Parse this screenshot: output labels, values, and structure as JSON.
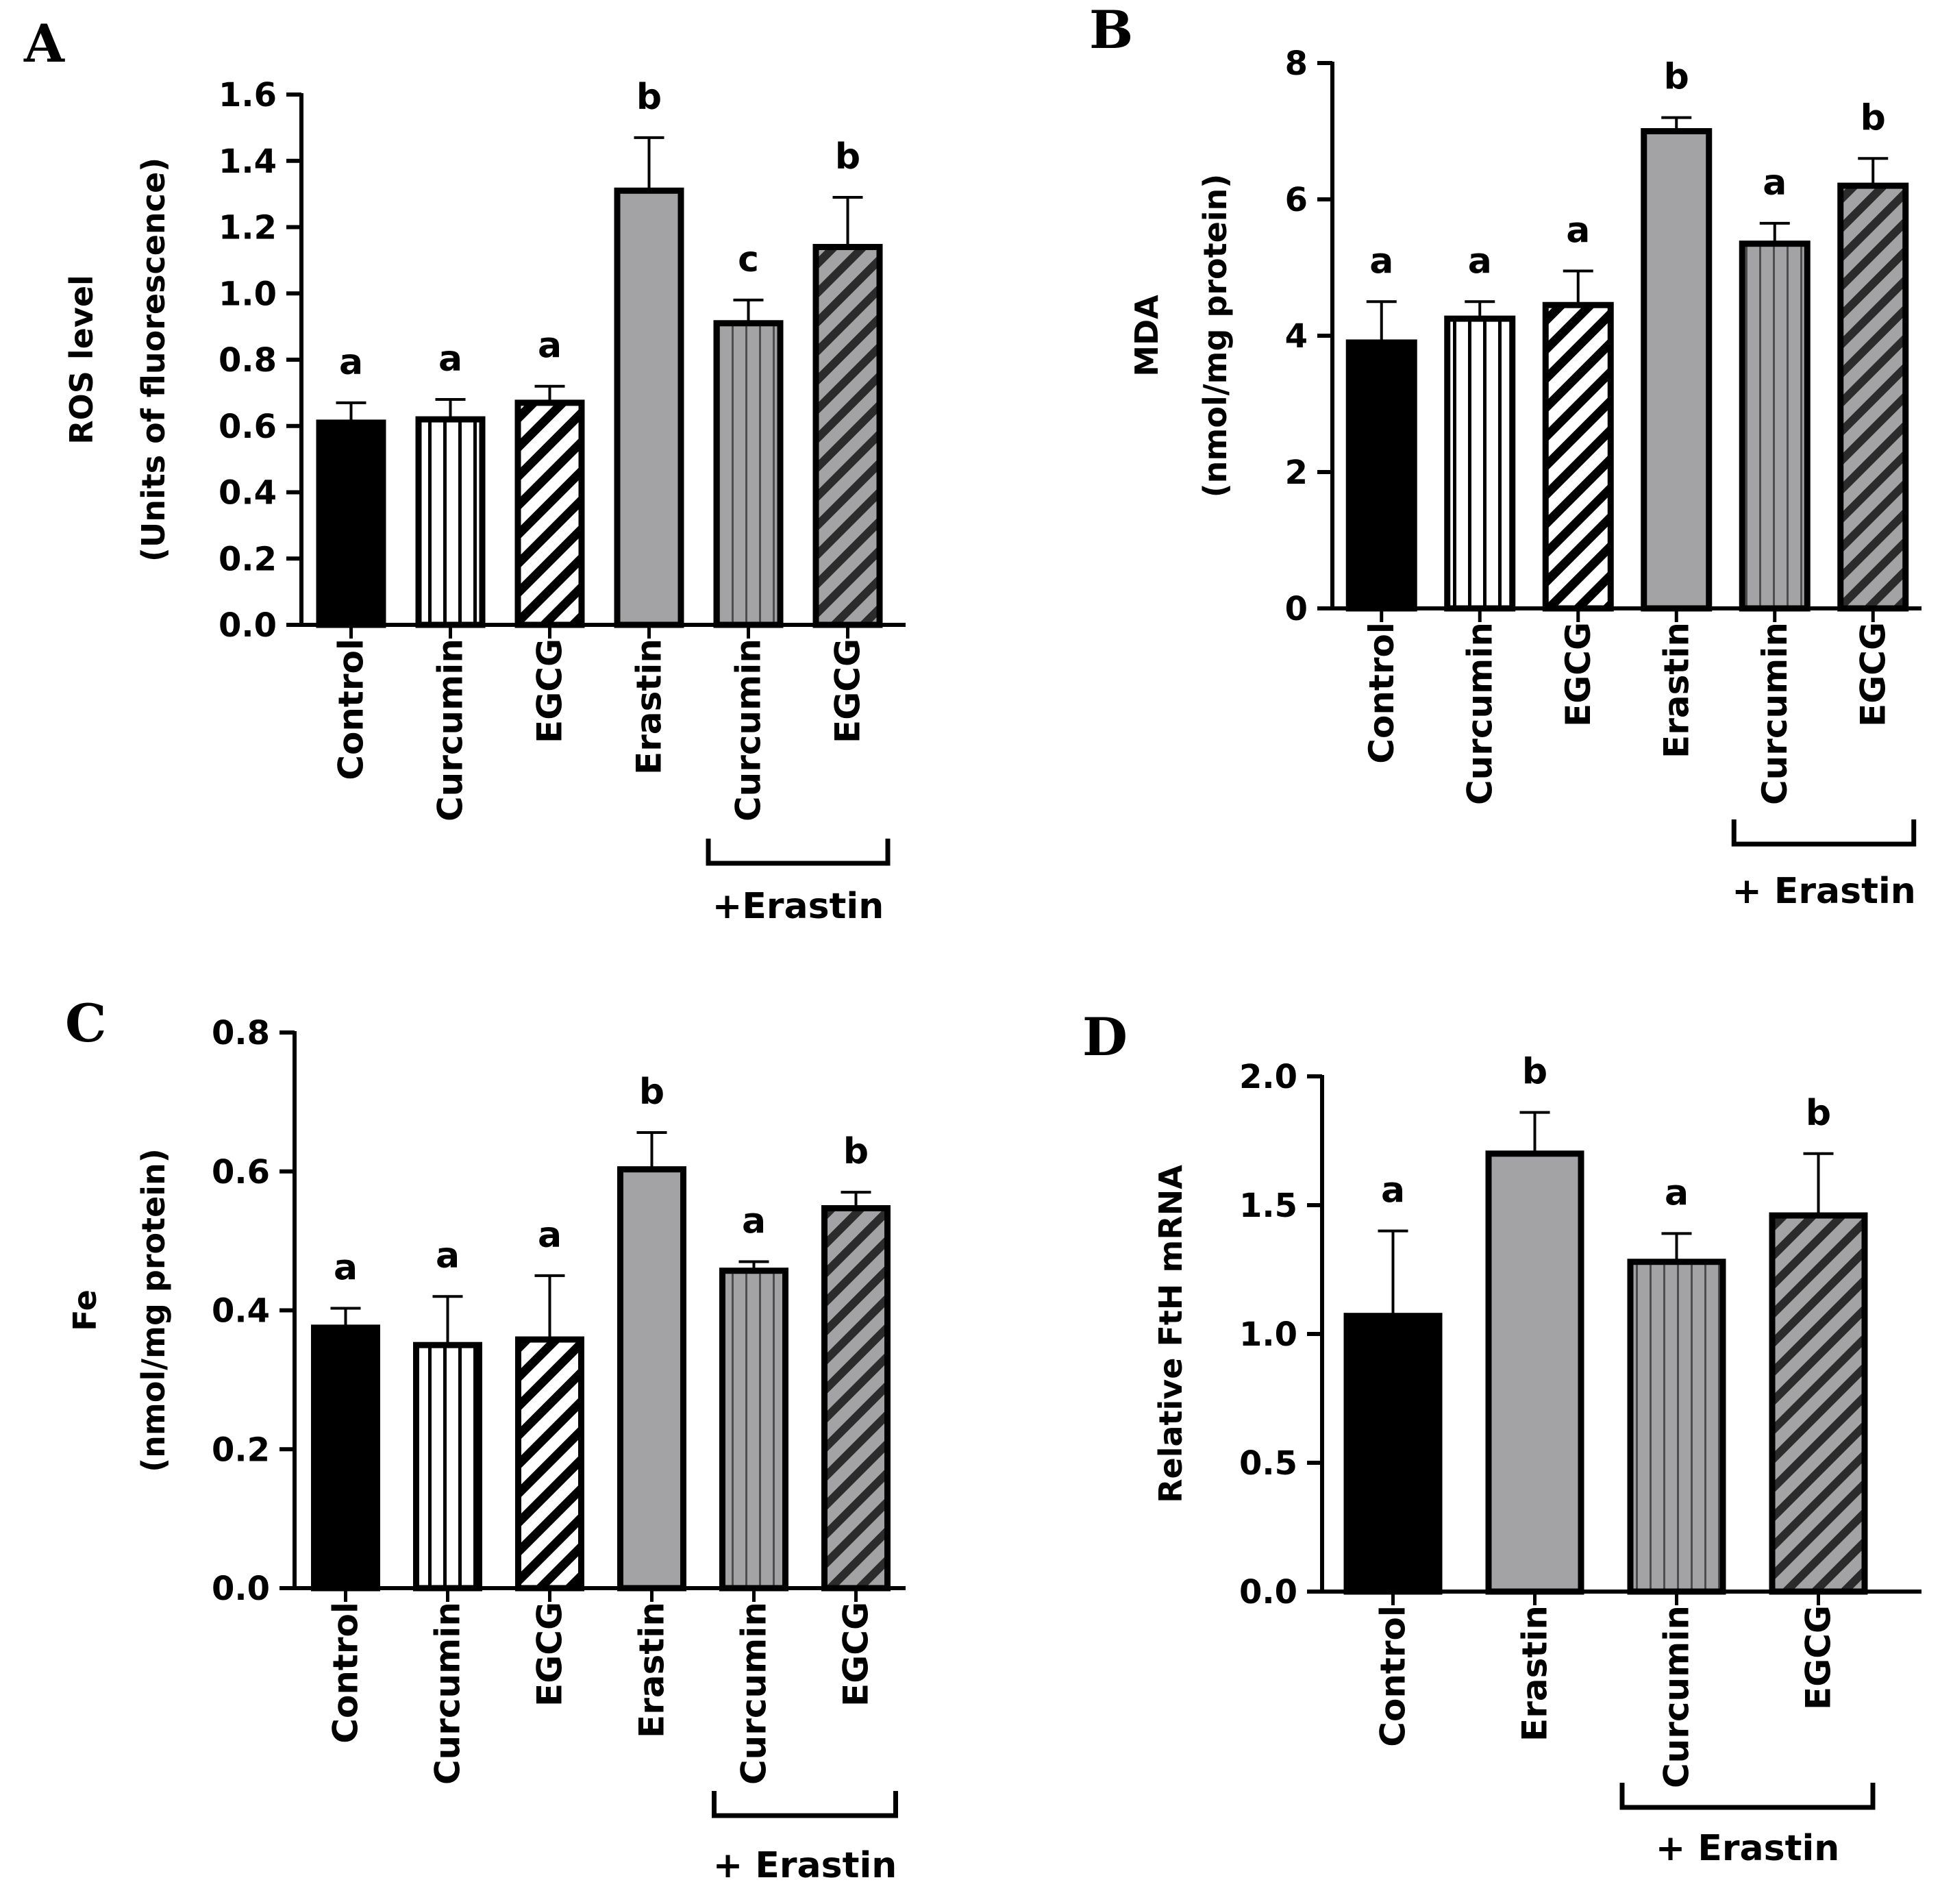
{
  "chart_data": [
    {
      "panel": "A",
      "type": "bar",
      "ylabel_line1": "ROS level",
      "ylabel_line2": "(Units of fluorescence)",
      "ylim": [
        0,
        1.6
      ],
      "yticks": [
        "0.0",
        "0.2",
        "0.4",
        "0.6",
        "0.8",
        "1.0",
        "1.2",
        "1.4",
        "1.6"
      ],
      "categories": [
        "Control",
        "Curcumin",
        "EGCG",
        "Erastin",
        "Curcumin",
        "EGCG"
      ],
      "values": [
        0.61,
        0.62,
        0.67,
        1.31,
        0.91,
        1.14
      ],
      "errors": [
        0.06,
        0.06,
        0.05,
        0.16,
        0.07,
        0.15
      ],
      "significance": [
        "a",
        "a",
        "a",
        "b",
        "c",
        "b"
      ],
      "fills": [
        "solid-black",
        "vertical-white",
        "diagonal-white",
        "solid-gray",
        "vertical-gray",
        "diagonal-gray"
      ],
      "group_label": "+Erastin",
      "group_range": [
        4,
        5
      ]
    },
    {
      "panel": "B",
      "type": "bar",
      "ylabel_line1": "MDA",
      "ylabel_line2": "(nmol/mg protein)",
      "ylim": [
        0,
        8
      ],
      "yticks": [
        "0",
        "2",
        "4",
        "6",
        "8"
      ],
      "categories": [
        "Control",
        "Curcumin",
        "EGCG",
        "Erastin",
        "Curcumin",
        "EGCG"
      ],
      "values": [
        3.9,
        4.25,
        4.45,
        7.0,
        5.35,
        6.2
      ],
      "errors": [
        0.6,
        0.25,
        0.5,
        0.2,
        0.3,
        0.4
      ],
      "significance": [
        "a",
        "a",
        "a",
        "b",
        "a",
        "b"
      ],
      "fills": [
        "solid-black",
        "vertical-white",
        "diagonal-white",
        "solid-gray",
        "vertical-gray",
        "diagonal-gray"
      ],
      "group_label": "+ Erastin",
      "group_range": [
        4,
        5
      ]
    },
    {
      "panel": "C",
      "type": "bar",
      "ylabel_line1": "Fe",
      "ylabel_line2": "(nmol/mg protein)",
      "ylim": [
        0,
        0.8
      ],
      "yticks": [
        "0.0",
        "0.2",
        "0.4",
        "0.6",
        "0.8"
      ],
      "categories": [
        "Control",
        "Curcumin",
        "EGCG",
        "Erastin",
        "Curcumin",
        "EGCG"
      ],
      "values": [
        0.375,
        0.35,
        0.358,
        0.603,
        0.457,
        0.547
      ],
      "errors": [
        0.028,
        0.07,
        0.092,
        0.053,
        0.013,
        0.023
      ],
      "significance": [
        "a",
        "a",
        "a",
        "b",
        "a",
        "b"
      ],
      "fills": [
        "solid-black",
        "vertical-white",
        "diagonal-white",
        "solid-gray",
        "vertical-gray",
        "diagonal-gray"
      ],
      "group_label": "+ Erastin",
      "group_range": [
        4,
        5
      ]
    },
    {
      "panel": "D",
      "type": "bar",
      "ylabel_line1": "Relative FtH mRNA",
      "ylabel_line2": "",
      "ylim": [
        0,
        2.0
      ],
      "yticks": [
        "0.0",
        "0.5",
        "1.0",
        "1.5",
        "2.0"
      ],
      "categories": [
        "Control",
        "Erastin",
        "Curcumin",
        "EGCG"
      ],
      "values": [
        1.07,
        1.7,
        1.28,
        1.46
      ],
      "errors": [
        0.33,
        0.16,
        0.11,
        0.24
      ],
      "significance": [
        "a",
        "b",
        "a",
        "b"
      ],
      "fills": [
        "solid-black",
        "solid-gray",
        "vertical-gray",
        "diagonal-gray"
      ],
      "group_label": "+ Erastin",
      "group_range": [
        2,
        3
      ]
    }
  ]
}
